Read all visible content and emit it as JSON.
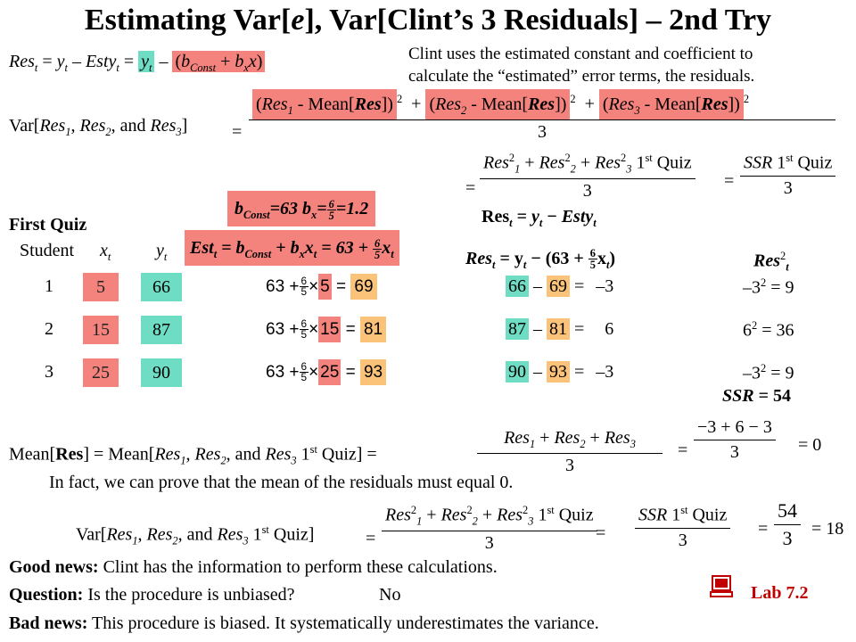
{
  "title": [
    "Estimating Var[",
    "e",
    "], Var[Clint’s 3 Residuals] – 2nd Try"
  ],
  "res_def": {
    "a": [
      "Res",
      "t",
      " = ",
      "y",
      "t",
      " – ",
      "Esty",
      "t",
      " = "
    ],
    "green": [
      "y",
      "t"
    ],
    "b": [
      " – "
    ],
    "red": [
      "(",
      "b",
      "Const",
      " + ",
      "b",
      "x",
      "x",
      ")"
    ]
  },
  "note": [
    "Clint uses the estimated constant and coefficient to",
    "calculate the “estimated” error terms, the residuals."
  ],
  "var_def": {
    "lhs": [
      "Var[",
      "Res",
      "1",
      ", ",
      "Res",
      "2",
      ", and ",
      "Res",
      "3",
      "]"
    ],
    "eq": "=",
    "terms": [
      [
        "(",
        "Res",
        "1",
        " - Mean[",
        "Res",
        "])"
      ],
      [
        "(",
        "Res",
        "2",
        " - Mean[",
        "Res",
        "])"
      ],
      [
        "(",
        "Res",
        "3",
        " - Mean[",
        "Res",
        "])"
      ]
    ],
    "squares": [
      "2",
      "2",
      "2"
    ],
    "plus": [
      "+ ",
      "+ "
    ],
    "den": "3",
    "eq2": "=",
    "num2": [
      "Res",
      "2",
      "1",
      " + ",
      "Res",
      "2",
      "2",
      " + ",
      "Res",
      "2",
      "3",
      " 1",
      "st",
      " Quiz"
    ],
    "den2": "3",
    "eq3": "=",
    "ssr_num": [
      "SSR",
      " 1",
      "st",
      " Quiz"
    ],
    "ssr_den": "3"
  },
  "params": {
    "a": [
      "b",
      "Const",
      "=63   ",
      "b",
      "x",
      "="
    ],
    "frac": [
      "6",
      "5"
    ],
    "b": "=1.2"
  },
  "res_def2": [
    "Res",
    "t",
    " = ",
    "y",
    "t",
    " − ",
    "Esty",
    "t"
  ],
  "first_quiz": "First Quiz",
  "headers": {
    "student": "Student",
    "x": [
      "x",
      "t"
    ],
    "y": [
      "y",
      "t"
    ]
  },
  "est_def": {
    "a": [
      "Est",
      "t",
      " = ",
      "b",
      "Const",
      " + ",
      "b",
      "x",
      "x",
      "t",
      " = 63 + "
    ],
    "frac": [
      "6",
      "5"
    ],
    "b": [
      "x",
      "t"
    ]
  },
  "res_formula": {
    "a": [
      "Res",
      "t",
      " = y",
      "t",
      " − (63 + "
    ],
    "frac": [
      "6",
      "5"
    ],
    "b": [
      "x",
      "t",
      ")"
    ]
  },
  "res_sq_header": [
    "Res",
    "2",
    "t"
  ],
  "rows": [
    {
      "student": 1,
      "x": 5,
      "y": 66,
      "calc": {
        "a": "63 +",
        "frac": [
          "6",
          "5"
        ],
        "times": "×",
        "x": 5,
        "eq": "=",
        "est": 69
      },
      "resid": {
        "y": 66,
        "minus": "–",
        "est": 69,
        "eq": "=",
        "res": "–3"
      },
      "square": [
        "–3",
        "2",
        " = 9"
      ]
    },
    {
      "student": 2,
      "x": 15,
      "y": 87,
      "calc": {
        "a": "63 +",
        "frac": [
          "6",
          "5"
        ],
        "times": "×",
        "x": 15,
        "eq": "=",
        "est": 81
      },
      "resid": {
        "y": 87,
        "minus": "–",
        "est": 81,
        "eq": "=",
        "res": "6"
      },
      "square": [
        "6",
        "2",
        " = 36"
      ]
    },
    {
      "student": 3,
      "x": 25,
      "y": 90,
      "calc": {
        "a": "63 +",
        "frac": [
          "6",
          "5"
        ],
        "times": "×",
        "x": 25,
        "eq": "=",
        "est": 93
      },
      "resid": {
        "y": 90,
        "minus": "–",
        "est": 93,
        "eq": "=",
        "res": "–3"
      },
      "square": [
        "–3",
        "2",
        " = 9"
      ]
    }
  ],
  "ssr": [
    "SSR",
    " = 54"
  ],
  "mean_line": {
    "lhs": [
      "Mean[",
      "Res",
      "] = Mean[",
      "Res",
      "1",
      ", ",
      "Res",
      "2",
      ", and ",
      "Res",
      "3",
      " 1",
      "st",
      " Quiz] ="
    ],
    "num": [
      "Res",
      "1",
      " + ",
      "Res",
      "2",
      " + ",
      "Res",
      "3"
    ],
    "den": "3",
    "eq": "=",
    "num2": "−3 + 6 − 3",
    "den2": "3",
    "result": "= 0"
  },
  "fact": "In fact, we can prove that the mean of the residuals must equal 0.",
  "var_final": {
    "lhs": [
      "Var[",
      "Res",
      "1",
      ", ",
      "Res",
      "2",
      ", and ",
      "Res",
      "3",
      " 1",
      "st",
      " Quiz]"
    ],
    "eq": "=",
    "num": [
      "Res",
      "2",
      "1",
      " + ",
      "Res",
      "2",
      "2",
      " + ",
      "Res",
      "2",
      "3",
      " 1",
      "st",
      " Quiz"
    ],
    "den": "3",
    "eq2": "=",
    "ssr_num": [
      "SSR",
      " 1",
      "st",
      " Quiz"
    ],
    "ssr_den": "3",
    "eq3": "=",
    "num3": "54",
    "den3": "3",
    "result": "= 18"
  },
  "good": {
    "label": "Good news:",
    "text": " Clint has the information to perform these calculations."
  },
  "question": {
    "label": "Question:",
    "text": " Is the procedure is unbiased?",
    "answer": "No"
  },
  "bad": {
    "label": "Bad news:",
    "text": " This procedure is biased. It systematically underestimates the variance."
  },
  "lab": "Lab 7.2"
}
